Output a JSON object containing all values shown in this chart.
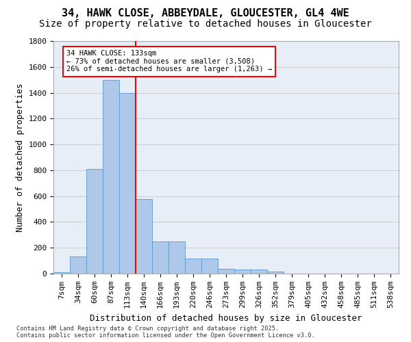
{
  "title_line1": "34, HAWK CLOSE, ABBEYDALE, GLOUCESTER, GL4 4WE",
  "title_line2": "Size of property relative to detached houses in Gloucester",
  "xlabel": "Distribution of detached houses by size in Gloucester",
  "ylabel": "Number of detached properties",
  "footer_line1": "Contains HM Land Registry data © Crown copyright and database right 2025.",
  "footer_line2": "Contains public sector information licensed under the Open Government Licence v3.0.",
  "annotation_line1": "34 HAWK CLOSE: 133sqm",
  "annotation_line2": "← 73% of detached houses are smaller (3,508)",
  "annotation_line3": "26% of semi-detached houses are larger (1,263) →",
  "bar_labels": [
    "7sqm",
    "34sqm",
    "60sqm",
    "87sqm",
    "113sqm",
    "140sqm",
    "166sqm",
    "193sqm",
    "220sqm",
    "246sqm",
    "273sqm",
    "299sqm",
    "326sqm",
    "352sqm",
    "379sqm",
    "405sqm",
    "432sqm",
    "458sqm",
    "485sqm",
    "511sqm",
    "538sqm"
  ],
  "bar_values": [
    10,
    130,
    810,
    1500,
    1400,
    575,
    250,
    250,
    115,
    115,
    35,
    30,
    30,
    18,
    0,
    0,
    0,
    0,
    0,
    0,
    0
  ],
  "bar_color": "#adc8e8",
  "bar_edge_color": "#5599cc",
  "vline_x": 4.5,
  "vline_color": "red",
  "ylim": [
    0,
    1800
  ],
  "yticks": [
    0,
    200,
    400,
    600,
    800,
    1000,
    1200,
    1400,
    1600,
    1800
  ],
  "grid_color": "#cccccc",
  "bg_color": "#e8eef8",
  "title_fontsize": 11,
  "subtitle_fontsize": 10,
  "axis_label_fontsize": 9,
  "tick_fontsize": 8
}
